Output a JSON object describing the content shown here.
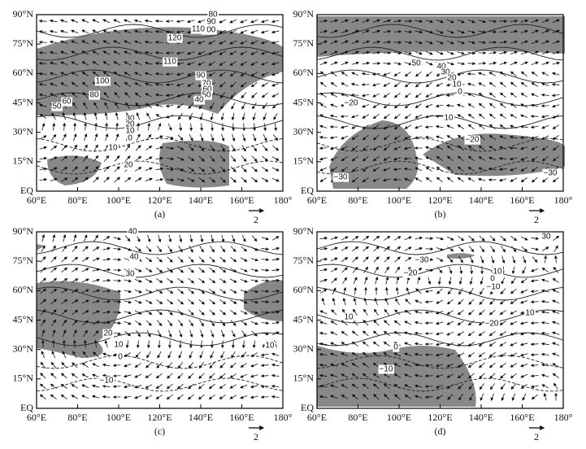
{
  "y_axis_labels": [
    "90°N",
    "75°N",
    "60°N",
    "45°N",
    "30°N",
    "15°N",
    "EQ"
  ],
  "x_axis_labels": [
    "60°E",
    "80°E",
    "100°E",
    "120°E",
    "140°E",
    "160°E",
    "180°"
  ],
  "panels": [
    {
      "label": "(a)",
      "scale_label": "2",
      "contour_labels": [
        "80",
        "90",
        "100",
        "110",
        "120",
        "110",
        "90",
        "70",
        "60",
        "50",
        "40",
        "100",
        "80",
        "60",
        "50",
        "30",
        "20",
        "10",
        "0",
        "10",
        "20"
      ]
    },
    {
      "label": "(b)",
      "scale_label": "2",
      "contour_labels": [
        "50",
        "40",
        "30",
        "20",
        "10",
        "0",
        "−20",
        "10",
        "−20",
        "−30",
        "−30"
      ]
    },
    {
      "label": "(c)",
      "scale_label": "2",
      "contour_labels": [
        "40",
        "40",
        "30",
        "20",
        "10",
        "0",
        "10",
        "−10"
      ]
    },
    {
      "label": "(d)",
      "scale_label": "2",
      "contour_labels": [
        "30",
        "−30",
        "−20",
        "10",
        "0",
        "−10",
        "10",
        "−20",
        "10",
        "0",
        "−10"
      ]
    }
  ]
}
